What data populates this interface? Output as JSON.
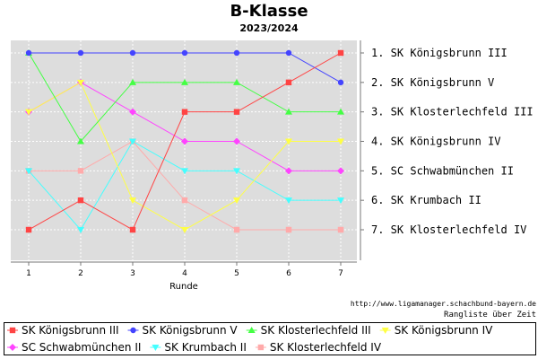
{
  "chart_data": {
    "type": "line",
    "title": "B-Klasse",
    "subtitle": "2023/2024",
    "xlabel": "Runde",
    "ylabel": "",
    "x": [
      1,
      2,
      3,
      4,
      5,
      6,
      7
    ],
    "ylim": [
      1,
      7
    ],
    "y_inverted": true,
    "grid": true,
    "legend_position": "bottom",
    "right_labels": [
      "1.  SK Königsbrunn III",
      "2.  SK Königsbrunn V",
      "3.  SK Klosterlechfeld III",
      "4.  SK Königsbrunn IV",
      "5.  SC Schwabmünchen II",
      "6.  SK Krumbach II",
      "7.  SK Klosterlechfeld IV"
    ],
    "series": [
      {
        "name": "SK Königsbrunn III",
        "color": "#ff4444",
        "marker": "square",
        "values": [
          7,
          6,
          7,
          3,
          3,
          2,
          1
        ]
      },
      {
        "name": "SK Königsbrunn V",
        "color": "#4444ff",
        "marker": "circle",
        "values": [
          1,
          1,
          1,
          1,
          1,
          1,
          2
        ]
      },
      {
        "name": "SK Klosterlechfeld III",
        "color": "#44ff44",
        "marker": "triangle-up",
        "values": [
          1,
          4,
          2,
          2,
          2,
          3,
          3
        ]
      },
      {
        "name": "SK Königsbrunn IV",
        "color": "#ffff44",
        "marker": "triangle-down",
        "values": [
          3,
          2,
          6,
          7,
          6,
          4,
          4
        ]
      },
      {
        "name": "SC Schwabmünchen II",
        "color": "#ff44ff",
        "marker": "diamond",
        "values": [
          3,
          2,
          3,
          4,
          4,
          5,
          5
        ]
      },
      {
        "name": "SK Krumbach II",
        "color": "#44ffff",
        "marker": "triangle-down",
        "values": [
          5,
          7,
          4,
          5,
          5,
          6,
          6
        ]
      },
      {
        "name": "SK Klosterlechfeld IV",
        "color": "#ffaaaa",
        "marker": "square",
        "values": [
          5,
          5,
          4,
          6,
          7,
          7,
          7
        ]
      }
    ],
    "source_text": "http://www.ligamanager.schachbund-bayern.de",
    "caption_text": "Rangliste über Zeit"
  }
}
